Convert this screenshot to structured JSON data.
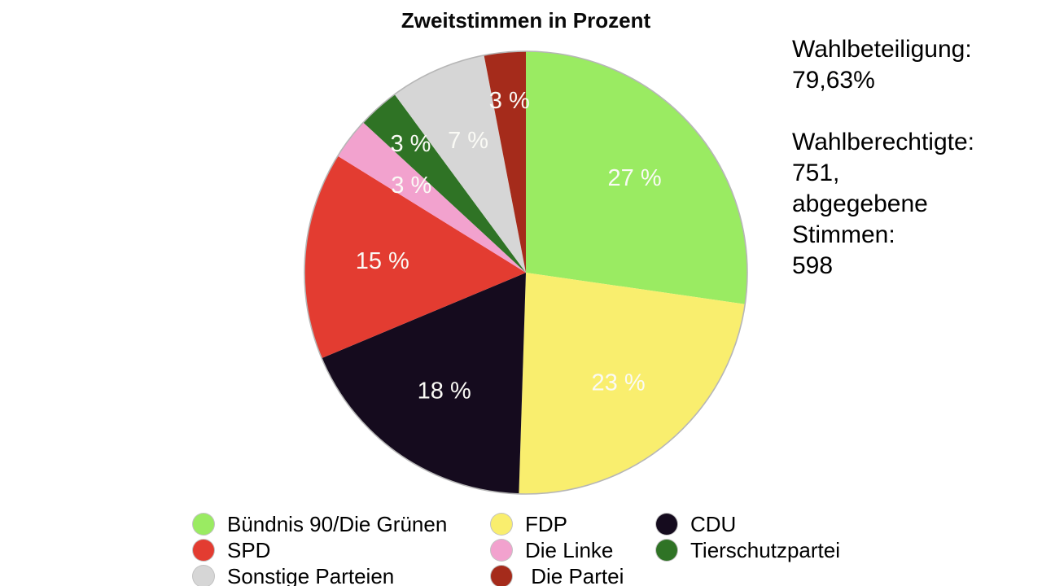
{
  "title": "Zweitstimmen in Prozent",
  "info_panel": {
    "lines": [
      "Wahlbeteiligung:",
      "79,63%",
      "",
      "Wahlberechtigte:",
      "751,",
      "abgegebene",
      "Stimmen:",
      "598"
    ]
  },
  "chart_data": {
    "type": "pie",
    "title": "Zweitstimmen in Prozent",
    "unit": "%",
    "direction": "clockwise",
    "start_angle": "12 o'clock",
    "legend_position": "bottom",
    "label_color": "#FAFAF5",
    "outline_color": "#B6B6B6",
    "label_radius_fraction": [
      0.65,
      0.65,
      0.65,
      0.65,
      0.65,
      0.78,
      0.65,
      0.78
    ],
    "series": [
      {
        "label": "Bündnis 90/Die Grünen",
        "value": 27,
        "display": "27 %",
        "color": "#9AEB62"
      },
      {
        "label": "FDP",
        "value": 23,
        "display": "23 %",
        "color": "#F9EE6E"
      },
      {
        "label": "CDU",
        "value": 18,
        "display": "18 %",
        "color": "#150B1E"
      },
      {
        "label": "SPD",
        "value": 15,
        "display": "15 %",
        "color": "#E33C31"
      },
      {
        "label": "Die Linke",
        "value": 3,
        "display": "3 %",
        "color": "#F2A2CE"
      },
      {
        "label": "Tierschutzpartei",
        "value": 3,
        "display": "3 %",
        "color": "#2F7325"
      },
      {
        "label": "Sonstige Parteien",
        "value": 7,
        "display": "7 %",
        "color": "#D6D6D6"
      },
      {
        "label": " Die Partei",
        "value": 3,
        "display": "3 %",
        "color": "#A52B1B"
      }
    ],
    "annotations": [
      "Wahlbeteiligung: 79,63%",
      "Wahlberechtigte: 751, abgegebene Stimmen: 598"
    ]
  }
}
